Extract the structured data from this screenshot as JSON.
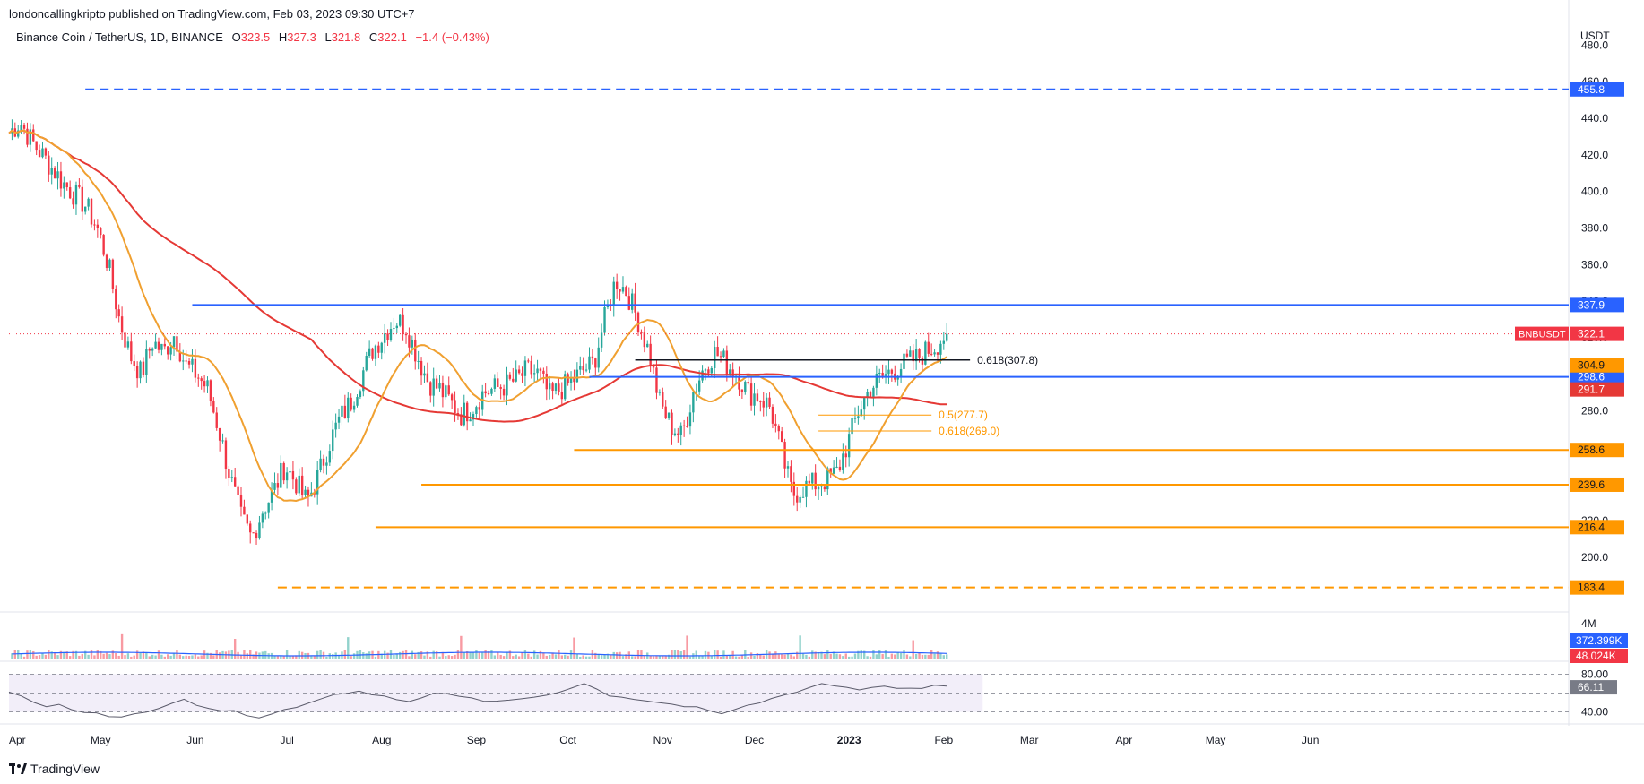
{
  "header": {
    "published_line": "londoncallingkripto published on TradingView.com, Feb 03, 2023 09:30 UTC+7"
  },
  "legend": {
    "symbol": "Binance Coin / TetherUS, 1D, BINANCE",
    "open_label": "O",
    "open": "323.5",
    "high_label": "H",
    "high": "327.3",
    "low_label": "L",
    "low": "321.8",
    "close_label": "C",
    "close": "322.1",
    "change": "−1.4 (−0.43%)"
  },
  "currency": "USDT",
  "footer": {
    "brand": "TradingView"
  },
  "colors": {
    "up": "#26a69a",
    "down": "#f23645",
    "blue": "#2962ff",
    "orange": "#ff9800",
    "ma_long": "#e53935",
    "ma_short": "#f0a030",
    "rsi": "#7e57c2"
  },
  "chart_data": {
    "type": "candlestick",
    "ylim": [
      170,
      490
    ],
    "y_ticks": [
      "200.0",
      "220.0",
      "240.0",
      "260.0",
      "280.0",
      "300.0",
      "320.0",
      "340.0",
      "360.0",
      "380.0",
      "400.0",
      "420.0",
      "440.0",
      "460.0",
      "480.0"
    ],
    "x_ticks": [
      "Apr",
      "May",
      "Jun",
      "Jul",
      "Aug",
      "Sep",
      "Oct",
      "Nov",
      "Dec",
      "2023",
      "Feb",
      "Mar",
      "Apr",
      "May",
      "Jun"
    ],
    "last_price": 322.1,
    "last_price_label": "322.1",
    "symbol_tag": "BNBUSDT",
    "close_series": [
      432,
      438,
      428,
      420,
      412,
      404,
      398,
      392,
      380,
      360,
      330,
      310,
      300,
      318,
      312,
      322,
      305,
      300,
      292,
      270,
      245,
      222,
      210,
      226,
      236,
      250,
      241,
      230,
      244,
      262,
      276,
      285,
      300,
      314,
      322,
      330,
      326,
      310,
      296,
      292,
      285,
      278,
      282,
      290,
      292,
      294,
      297,
      302,
      300,
      288,
      292,
      296,
      302,
      306,
      330,
      352,
      345,
      330,
      312,
      284,
      272,
      266,
      290,
      304,
      312,
      306,
      300,
      290,
      288,
      282,
      258,
      234,
      238,
      240,
      242,
      246,
      262,
      280,
      292,
      298,
      302,
      305,
      308,
      312,
      316,
      322
    ],
    "horizontal_levels": [
      {
        "value": 455.8,
        "label": "455.8",
        "color": "blue",
        "style": "dashed"
      },
      {
        "value": 337.9,
        "label": "337.9",
        "color": "blue",
        "style": "solid"
      },
      {
        "value": 298.6,
        "label": "298.6",
        "color": "blue",
        "style": "solid"
      },
      {
        "value": 258.6,
        "label": "258.6",
        "color": "orange",
        "style": "solid"
      },
      {
        "value": 239.6,
        "label": "239.6",
        "color": "orange",
        "style": "solid"
      },
      {
        "value": 216.4,
        "label": "216.4",
        "color": "orange",
        "style": "solid"
      },
      {
        "value": 183.4,
        "label": "183.4",
        "color": "orange",
        "style": "dashed"
      }
    ],
    "ma_tags": [
      {
        "value": 304.9,
        "label": "304.9",
        "color": "orange"
      },
      {
        "value": 291.7,
        "label": "291.7",
        "color": "ma_long"
      }
    ],
    "fib_levels": [
      {
        "value": 307.8,
        "label": "0.618(307.8)",
        "color": "black"
      },
      {
        "value": 277.7,
        "label": "0.5(277.7)",
        "color": "orange"
      },
      {
        "value": 269.0,
        "label": "0.618(269.0)",
        "color": "orange"
      }
    ],
    "volume": {
      "tick_label": "4M",
      "ma_value": "372.399K",
      "last_value": "48.024K"
    },
    "rsi": {
      "ylim": [
        30,
        90
      ],
      "upper": 80,
      "lower": 40,
      "upper_label": "80.00",
      "lower_label": "40.00",
      "value": 66.11,
      "value_label": "66.11",
      "series": [
        62,
        58,
        50,
        45,
        48,
        42,
        40,
        38,
        36,
        35,
        38,
        40,
        44,
        48,
        52,
        46,
        44,
        42,
        40,
        36,
        34,
        38,
        42,
        46,
        50,
        55,
        58,
        60,
        62,
        58,
        56,
        54,
        52,
        56,
        60,
        58,
        56,
        54,
        52,
        50,
        52,
        54,
        56,
        58,
        62,
        66,
        70,
        64,
        58,
        56,
        54,
        52,
        50,
        48,
        46,
        44,
        40,
        38,
        42,
        46,
        50,
        54,
        58,
        62,
        66,
        70,
        68,
        66,
        64,
        66,
        68,
        66,
        64,
        66,
        68,
        66
      ]
    }
  }
}
